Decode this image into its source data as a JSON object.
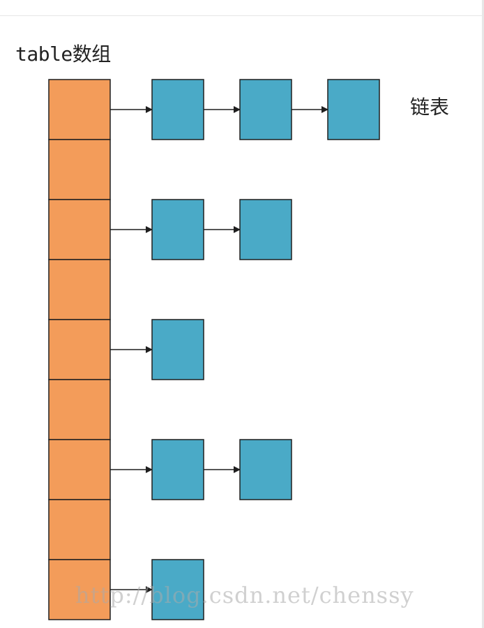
{
  "labels": {
    "table": "table数组",
    "list": "链表",
    "watermark": "http://blog.csdn.net/chenssy"
  },
  "table": {
    "slot_count": 9
  },
  "chains": [
    {
      "slot": 0,
      "nodes": 3
    },
    {
      "slot": 2,
      "nodes": 2
    },
    {
      "slot": 4,
      "nodes": 1
    },
    {
      "slot": 6,
      "nodes": 2
    },
    {
      "slot": 8,
      "nodes": 1
    }
  ],
  "colors": {
    "table_fill": "#f39c5a",
    "node_fill": "#4aaac7",
    "stroke": "#1f1f1f",
    "arrow": "#1f1f1f"
  }
}
